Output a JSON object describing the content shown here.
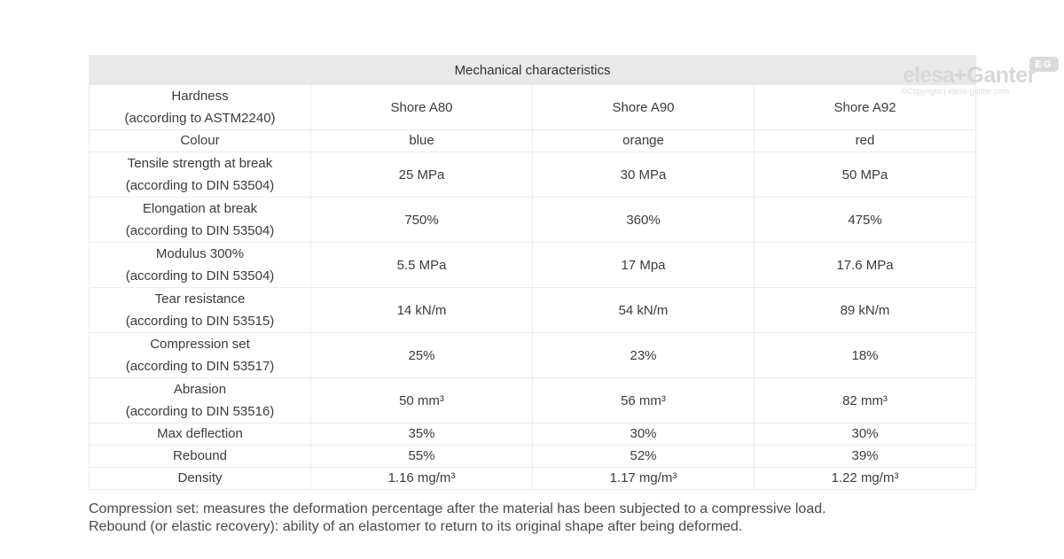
{
  "watermark": {
    "brand_elesa": "elesa",
    "brand_plus": "+",
    "brand_ganter": "Ganter",
    "badge": "EG",
    "copyright": "©Copyright | elesa-ganter.com",
    "brand_color": "#d7d7d7"
  },
  "table": {
    "title": "Mechanical characteristics",
    "header_bg": "#e9e9e9",
    "border_color": "#ececec",
    "rows": [
      {
        "label": "Hardness",
        "sublabel": "(according to ASTM2240)",
        "values": [
          "Shore A80",
          "Shore A90",
          "Shore A92"
        ]
      },
      {
        "label": "Colour",
        "sublabel": "",
        "values": [
          "blue",
          "orange",
          "red"
        ]
      },
      {
        "label": "Tensile strength at break",
        "sublabel": "(according to DIN 53504)",
        "values": [
          "25 MPa",
          "30 MPa",
          "50 MPa"
        ]
      },
      {
        "label": "Elongation at break",
        "sublabel": "(according to DIN 53504)",
        "values": [
          "750%",
          "360%",
          "475%"
        ]
      },
      {
        "label": "Modulus 300%",
        "sublabel": "(according to DIN 53504)",
        "values": [
          "5.5 MPa",
          "17 Mpa",
          "17.6 MPa"
        ]
      },
      {
        "label": "Tear resistance",
        "sublabel": "(according to DIN 53515)",
        "values": [
          "14 kN/m",
          "54 kN/m",
          "89 kN/m"
        ]
      },
      {
        "label": "Compression set",
        "sublabel": "(according to DIN 53517)",
        "values": [
          "25%",
          "23%",
          "18%"
        ]
      },
      {
        "label": "Abrasion",
        "sublabel": "(according to DIN 53516)",
        "values": [
          "50 mm³",
          "56 mm³",
          "82 mm³"
        ]
      },
      {
        "label": "Max deflection",
        "sublabel": "",
        "values": [
          "35%",
          "30%",
          "30%"
        ]
      },
      {
        "label": "Rebound",
        "sublabel": "",
        "values": [
          "55%",
          "52%",
          "39%"
        ]
      },
      {
        "label": "Density",
        "sublabel": "",
        "values": [
          "1.16 mg/m³",
          "1.17 mg/m³",
          "1.22 mg/m³"
        ]
      }
    ]
  },
  "footnotes": [
    "Compression set: measures the deformation percentage after the material has been subjected to a compressive load.",
    "Rebound (or elastic recovery): ability of an elastomer to return to its original shape after being deformed."
  ]
}
